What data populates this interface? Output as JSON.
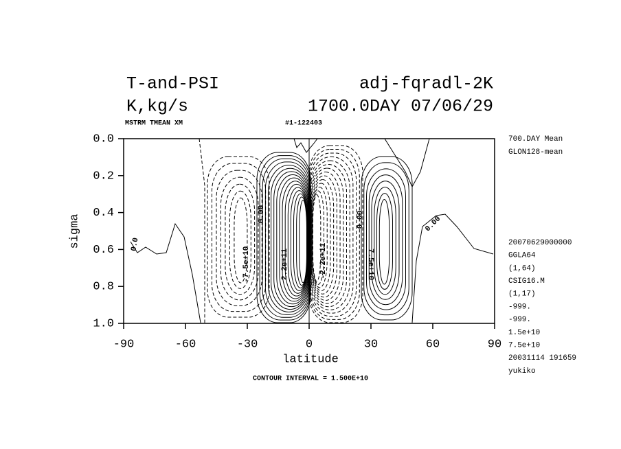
{
  "chart_data": {
    "type": "contour",
    "title_left": "T-and-PSI",
    "title_right": "adj-fqradl-2K",
    "subtitle_left": "K,kg/s",
    "subtitle_right": "1700.0DAY 07/06/29",
    "header_left": "MSTRM TMEAN XM",
    "header_right": "#1-122403",
    "x_label": "latitude",
    "y_label": "sigma",
    "footer": "CONTOUR INTERVAL = 1.500E+10",
    "xlim": [
      -90,
      90
    ],
    "xticks": [
      -90,
      -60,
      -30,
      0,
      30,
      60,
      90
    ],
    "ylim": [
      1.0,
      0.0
    ],
    "yticks": [
      {
        "value": 0,
        "label": "0.0"
      },
      0.2,
      0.4,
      0.6,
      0.8,
      {
        "value": 1,
        "label": "1.0"
      }
    ],
    "contour_labels": [
      "0.0",
      "-7.5e+10",
      "0.00",
      "2.2e+11",
      "-2.2e+11",
      "0.00",
      "7.5e+10",
      "0.00"
    ],
    "annotations_top": [
      "700.DAY Mean",
      "GLON128-mean"
    ],
    "annotations": [
      "20070629000000",
      "GGLA64",
      "(1,64)",
      "CSIG16.M",
      "(1,17)",
      "-999.",
      "-999.",
      "1.5e+10",
      "7.5e+10",
      "20031114 191659",
      "yukiko"
    ]
  }
}
